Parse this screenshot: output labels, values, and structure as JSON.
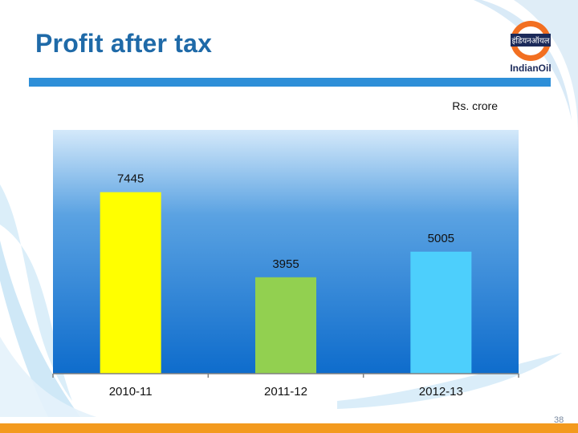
{
  "slide": {
    "title": "Profit after tax",
    "unit": "Rs. crore",
    "page_number": "38"
  },
  "logo": {
    "brand_text": "IndianOil",
    "hindi_text": "इंडियनऑयल"
  },
  "colors": {
    "title": "#1f6aa8",
    "title_bar": "#2e8fd8",
    "footer_bar": "#f39a1e",
    "bars": [
      "#ffff00",
      "#92d050",
      "#4dcffc"
    ]
  },
  "chart_data": {
    "type": "bar",
    "title": "Profit after tax",
    "categories": [
      "2010-11",
      "2011-12",
      "2012-13"
    ],
    "values": [
      7445,
      3955,
      5005
    ],
    "data_labels": [
      "7445",
      "3955",
      "5005"
    ],
    "xlabel": "",
    "ylabel": "Rs. crore",
    "ylim": [
      0,
      10000
    ],
    "grid": false,
    "legend": "none"
  }
}
